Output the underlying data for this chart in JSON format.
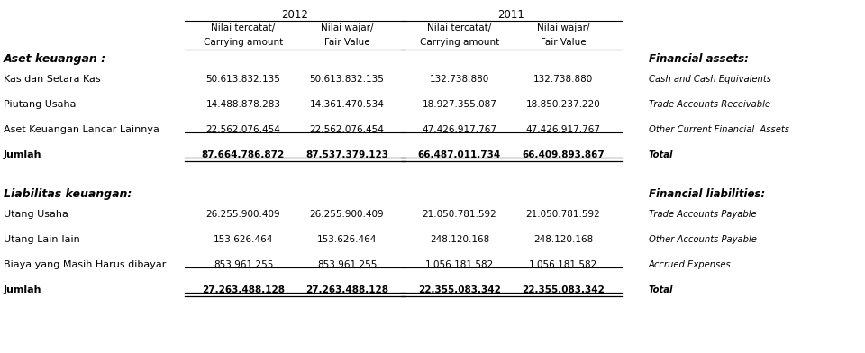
{
  "title_2012": "2012",
  "title_2011": "2011",
  "col_headers_line1": [
    "Nilai tercatat/",
    "Nilai wajar/",
    "Nilai tercatat/",
    "Nilai wajar/"
  ],
  "col_headers_line2": [
    "Carrying amount",
    "Fair Value",
    "Carrying amount",
    "Fair Value"
  ],
  "sections": [
    {
      "header_id": "Aset keuangan :",
      "header_en": "Financial assets:",
      "rows": [
        {
          "label_id": "Kas dan Setara Kas",
          "label_en": "Cash and Cash Equivalents",
          "values": [
            "50.613.832.135",
            "50.613.832.135",
            "132.738.880",
            "132.738.880"
          ],
          "bold": false
        },
        {
          "label_id": "Piutang Usaha",
          "label_en": "Trade Accounts Receivable",
          "values": [
            "14.488.878.283",
            "14.361.470.534",
            "18.927.355.087",
            "18.850.237.220"
          ],
          "bold": false
        },
        {
          "label_id": "Aset Keuangan Lancar Lainnya",
          "label_en": "Other Current Financial  Assets",
          "values": [
            "22.562.076.454",
            "22.562.076.454",
            "47.426.917.767",
            "47.426.917.767"
          ],
          "bold": false
        },
        {
          "label_id": "Jumlah",
          "label_en": "Total",
          "values": [
            "87.664.786.872",
            "87.537.379.123",
            "66.487.011.734",
            "66.409.893.867"
          ],
          "bold": true
        }
      ]
    },
    {
      "header_id": "Liabilitas keuangan:",
      "header_en": "Financial liabilities:",
      "rows": [
        {
          "label_id": "Utang Usaha",
          "label_en": "Trade Accounts Payable",
          "values": [
            "26.255.900.409",
            "26.255.900.409",
            "21.050.781.592",
            "21.050.781.592"
          ],
          "bold": false
        },
        {
          "label_id": "Utang Lain-lain",
          "label_en": "Other Accounts Payable",
          "values": [
            "153.626.464",
            "153.626.464",
            "248.120.168",
            "248.120.168"
          ],
          "bold": false
        },
        {
          "label_id": "Biaya yang Masih Harus dibayar",
          "label_en": "Accrued Expenses",
          "values": [
            "853.961.255",
            "853.961.255",
            "1.056.181.582",
            "1.056.181.582"
          ],
          "bold": false
        },
        {
          "label_id": "Jumlah",
          "label_en": "Total",
          "values": [
            "27.263.488.128",
            "27.263.488.128",
            "22.355.083.342",
            "22.355.083.342"
          ],
          "bold": true
        }
      ]
    }
  ],
  "bg_color": "#ffffff",
  "text_color": "#000000"
}
